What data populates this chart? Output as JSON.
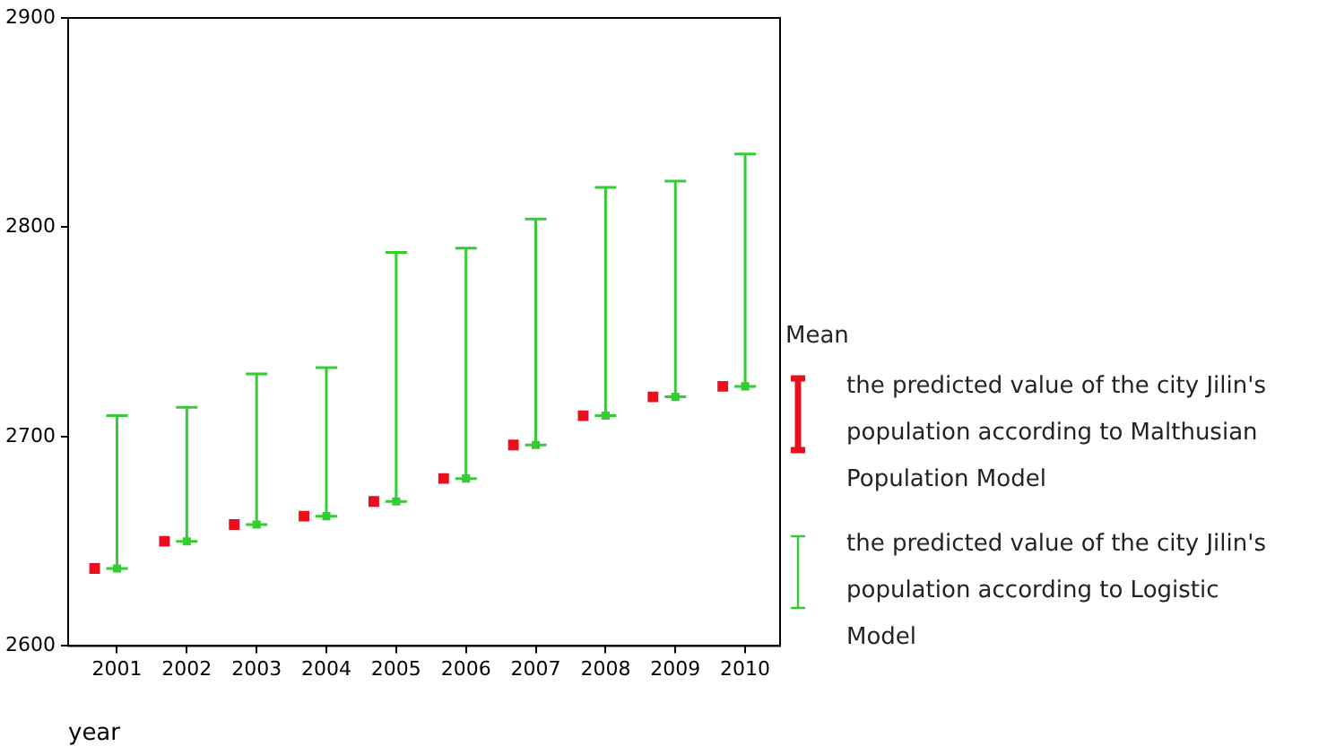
{
  "chart_data": {
    "type": "scatter",
    "xlabel": "year",
    "legend_title": "Mean",
    "categories": [
      "2001",
      "2002",
      "2003",
      "2004",
      "2005",
      "2006",
      "2007",
      "2008",
      "2009",
      "2010"
    ],
    "series": [
      {
        "name": "the predicted value of the city Jilin's population according to Malthusian Population Model",
        "marker": "square",
        "color": "#e8101c",
        "values": [
          2637,
          2650,
          2658,
          2662,
          2669,
          2680,
          2696,
          2710,
          2719,
          2724
        ]
      },
      {
        "name": "the predicted value of the city Jilin's population according to Logistic Model",
        "marker": "square",
        "color": "#33cc33",
        "values": [
          2637,
          2650,
          2658,
          2662,
          2669,
          2680,
          2696,
          2710,
          2719,
          2724
        ],
        "errors": [
          [
            2637,
            2710
          ],
          [
            2650,
            2714
          ],
          [
            2658,
            2730
          ],
          [
            2662,
            2733
          ],
          [
            2669,
            2788
          ],
          [
            2680,
            2790
          ],
          [
            2696,
            2804
          ],
          [
            2710,
            2819
          ],
          [
            2719,
            2822
          ],
          [
            2724,
            2835
          ]
        ]
      }
    ],
    "ylim": [
      2600,
      2900
    ],
    "yticks": [
      2600,
      2700,
      2800,
      2900
    ],
    "grid": false,
    "legend": "right"
  }
}
